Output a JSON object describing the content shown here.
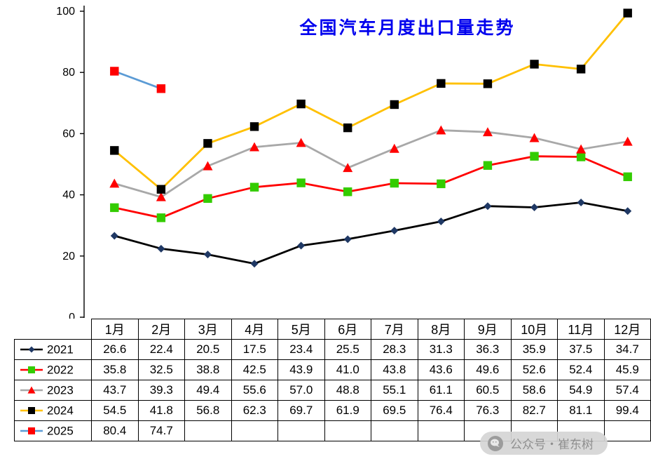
{
  "title": "全国汽车月度出口量走势",
  "watermark": {
    "label": "公众号・崔东树",
    "icon": "wechat-icon"
  },
  "colors": {
    "title": "#0000ee",
    "axis": "#000000",
    "table_border": "#000000",
    "watermark_bg": "#d5d5d5",
    "watermark_text": "#8f8f8f"
  },
  "chart_data": {
    "type": "line",
    "title": "全国汽车月度出口量走势",
    "xlabel": "",
    "ylabel": "",
    "ylim": [
      0,
      100
    ],
    "yticks": [
      0,
      20,
      40,
      60,
      80,
      100
    ],
    "grid": false,
    "legend_position": "table-left",
    "categories": [
      "1月",
      "2月",
      "3月",
      "4月",
      "5月",
      "6月",
      "7月",
      "8月",
      "9月",
      "10月",
      "11月",
      "12月"
    ],
    "series": [
      {
        "name": "2021",
        "line_color": "#000000",
        "marker": "diamond",
        "marker_color": "#1f3864",
        "values": [
          26.6,
          22.4,
          20.5,
          17.5,
          23.4,
          25.5,
          28.3,
          31.3,
          36.3,
          35.9,
          37.5,
          34.7
        ]
      },
      {
        "name": "2022",
        "line_color": "#ff0000",
        "marker": "square",
        "marker_color": "#33cc00",
        "values": [
          35.8,
          32.5,
          38.8,
          42.5,
          43.9,
          41.0,
          43.8,
          43.6,
          49.6,
          52.6,
          52.4,
          45.9
        ]
      },
      {
        "name": "2023",
        "line_color": "#a8a8a8",
        "marker": "triangle",
        "marker_color": "#ff0000",
        "values": [
          43.7,
          39.3,
          49.4,
          55.6,
          57.0,
          48.8,
          55.1,
          61.1,
          60.5,
          58.6,
          54.9,
          57.4
        ]
      },
      {
        "name": "2024",
        "line_color": "#ffc000",
        "marker": "square",
        "marker_color": "#000000",
        "values": [
          54.5,
          41.8,
          56.8,
          62.3,
          69.7,
          61.9,
          69.5,
          76.4,
          76.3,
          82.7,
          81.1,
          99.4
        ]
      },
      {
        "name": "2025",
        "line_color": "#5b9bd5",
        "marker": "square",
        "marker_color": "#ff0000",
        "values": [
          80.4,
          74.7
        ]
      }
    ]
  }
}
